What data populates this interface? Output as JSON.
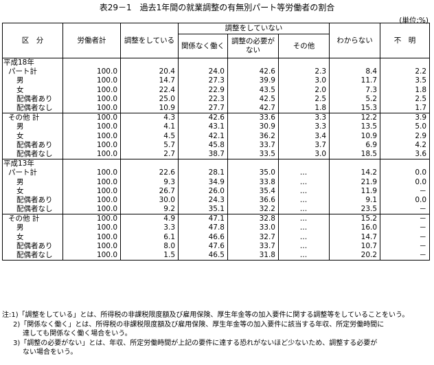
{
  "title": "表29－1　過去1年間の就業調整の有無別パート等労働者の割合",
  "unit": "(単位:%)",
  "headers": {
    "section": "区　分",
    "workers": "労働者計",
    "adjusting": "調整をしている",
    "not_adjusting": "調整をしていない",
    "regardless": "関係なく働く",
    "no_need": "調整の必要がない",
    "other": "その他",
    "unknown": "わからない",
    "unclear": "不　明"
  },
  "rows": [
    {
      "kind": "group",
      "label": "平成18年",
      "v": [
        "",
        "",
        "",
        "",
        "",
        "",
        ""
      ]
    },
    {
      "kind": "top",
      "label": "パート計",
      "v": [
        "100.0",
        "20.4",
        "24.0",
        "42.6",
        "2.3",
        "8.4",
        "2.2"
      ]
    },
    {
      "kind": "row",
      "label": "男",
      "v": [
        "100.0",
        "14.7",
        "27.3",
        "39.9",
        "3.0",
        "11.7",
        "3.5"
      ]
    },
    {
      "kind": "row",
      "label": "女",
      "v": [
        "100.0",
        "22.4",
        "22.9",
        "43.5",
        "2.0",
        "7.3",
        "1.8"
      ]
    },
    {
      "kind": "row",
      "label": "配偶者あり",
      "v": [
        "100.0",
        "25.0",
        "22.3",
        "42.5",
        "2.5",
        "5.2",
        "2.5"
      ]
    },
    {
      "kind": "row",
      "label": "配偶者なし",
      "v": [
        "100.0",
        "10.9",
        "27.7",
        "42.7",
        "1.8",
        "15.3",
        "1.7"
      ]
    },
    {
      "kind": "top2",
      "label": "その他 計",
      "v": [
        "100.0",
        "4.3",
        "42.6",
        "33.6",
        "3.3",
        "12.2",
        "3.9"
      ]
    },
    {
      "kind": "row",
      "label": "男",
      "v": [
        "100.0",
        "4.1",
        "43.1",
        "30.9",
        "3.3",
        "13.5",
        "5.0"
      ]
    },
    {
      "kind": "row",
      "label": "女",
      "v": [
        "100.0",
        "4.5",
        "42.1",
        "36.2",
        "3.4",
        "10.9",
        "2.9"
      ]
    },
    {
      "kind": "row",
      "label": "配偶者あり",
      "v": [
        "100.0",
        "5.7",
        "45.8",
        "33.7",
        "3.7",
        "6.9",
        "4.2"
      ]
    },
    {
      "kind": "row",
      "label": "配偶者なし",
      "v": [
        "100.0",
        "2.7",
        "38.7",
        "33.5",
        "3.0",
        "18.5",
        "3.6"
      ]
    },
    {
      "kind": "group",
      "label": "平成13年",
      "v": [
        "",
        "",
        "",
        "",
        "",
        "",
        ""
      ]
    },
    {
      "kind": "top",
      "label": "パート計",
      "v": [
        "100.0",
        "22.6",
        "28.1",
        "35.0",
        "…",
        "14.2",
        "0.0"
      ]
    },
    {
      "kind": "row",
      "label": "男",
      "v": [
        "100.0",
        "9.3",
        "34.9",
        "33.8",
        "…",
        "21.9",
        "0.0"
      ]
    },
    {
      "kind": "row",
      "label": "女",
      "v": [
        "100.0",
        "26.7",
        "26.0",
        "35.4",
        "…",
        "11.9",
        "－"
      ]
    },
    {
      "kind": "row",
      "label": "配偶者あり",
      "v": [
        "100.0",
        "30.0",
        "24.3",
        "36.6",
        "…",
        "9.1",
        "0.0"
      ]
    },
    {
      "kind": "row",
      "label": "配偶者なし",
      "v": [
        "100.0",
        "9.2",
        "35.1",
        "32.2",
        "…",
        "23.5",
        "－"
      ]
    },
    {
      "kind": "top2",
      "label": "その他 計",
      "v": [
        "100.0",
        "4.9",
        "47.1",
        "32.8",
        "…",
        "15.2",
        "－"
      ]
    },
    {
      "kind": "row",
      "label": "男",
      "v": [
        "100.0",
        "3.3",
        "47.8",
        "33.0",
        "…",
        "16.0",
        "－"
      ]
    },
    {
      "kind": "row",
      "label": "女",
      "v": [
        "100.0",
        "6.1",
        "46.6",
        "32.7",
        "…",
        "14.7",
        "－"
      ]
    },
    {
      "kind": "row",
      "label": "配偶者あり",
      "v": [
        "100.0",
        "8.0",
        "47.6",
        "33.7",
        "…",
        "10.7",
        "－"
      ]
    },
    {
      "kind": "row",
      "label": "配偶者なし",
      "v": [
        "100.0",
        "1.5",
        "46.5",
        "31.8",
        "…",
        "20.2",
        "－"
      ]
    }
  ],
  "notes": {
    "n1": "注:1)「調整をしている」とは、所得税の非課税限度額及び雇用保険、厚生年金等の加入要件に関する調整等をしていることをいう。",
    "n2a": "2)「関係なく働く」とは、所得税の非課税限度額及び雇用保険、厚生年金等の加入要件に該当する年収、所定労働時間に",
    "n2b": "達しても関係なく働く場合をいう。",
    "n3a": "3)「調整の必要がない」とは、年収、所定労働時間が上記の要件に達する恐れがないほど少ないため、調整する必要が",
    "n3b": "ない場合をいう。"
  }
}
